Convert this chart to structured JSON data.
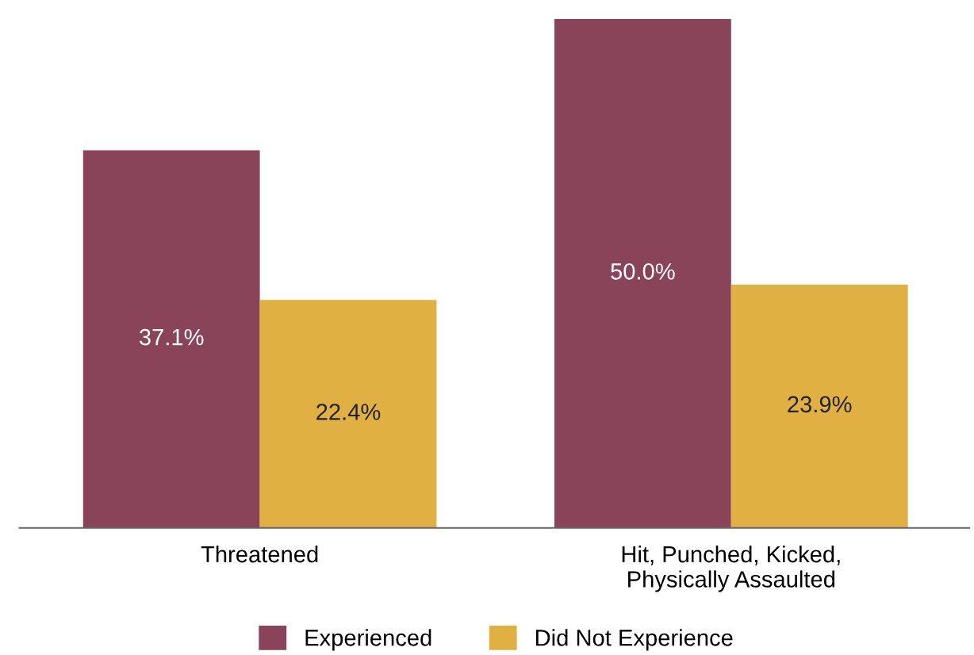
{
  "chart_data": {
    "type": "bar",
    "categories": [
      "Threatened",
      "Hit, Punched, Kicked,\nPhysically Assaulted"
    ],
    "series": [
      {
        "name": "Experienced",
        "color": "#8a4459",
        "values": [
          37.1,
          50.0
        ],
        "value_labels": [
          "37.1%",
          "50.0%"
        ]
      },
      {
        "name": "Did Not Experience",
        "color": "#e1b043",
        "values": [
          22.4,
          23.9
        ],
        "value_labels": [
          "22.4%",
          "23.9%"
        ]
      }
    ],
    "ylim": [
      0,
      50
    ],
    "tick_labels": "x",
    "legend": "bottom",
    "grid": false
  }
}
